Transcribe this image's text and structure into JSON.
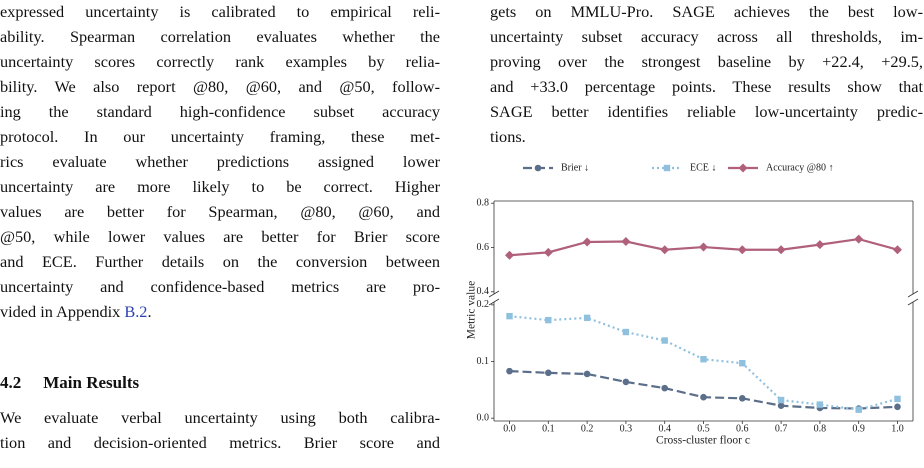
{
  "left": {
    "paragraph1": [
      "expressed uncertainty is calibrated to empirical reli-",
      "ability. Spearman correlation evaluates whether the",
      "uncertainty scores correctly rank examples by relia-",
      "bility. We also report @80, @60, and @50, follow-",
      "ing the standard high-confidence subset accuracy",
      "protocol. In our uncertainty framing, these met-",
      "rics evaluate whether predictions assigned lower",
      "uncertainty are more likely to be correct. Higher",
      "values are better for Spearman, @80, @60, and",
      "@50, while lower values are better for Brier score",
      "and ECE. Further details on the conversion between",
      "uncertainty and confidence-based metrics are pro-"
    ],
    "last_line": {
      "before": "vided in Appendix ",
      "link": "B.2",
      "after": "."
    },
    "section": {
      "number": "4.2",
      "title": "Main Results"
    },
    "paragraph2": [
      "We evaluate verbal uncertainty using both calibra-",
      "tion and decision-oriented metrics. Brier score and"
    ]
  },
  "right": {
    "paragraph": [
      "gets on MMLU-Pro. SAGE achieves the best low-",
      "uncertainty subset accuracy across all thresholds, im-",
      "proving over the strongest baseline by +22.4, +29.5,",
      "and +33.0 percentage points. These results show that",
      "SAGE better identifies reliable low-uncertainty predic-",
      "tions."
    ]
  },
  "chart_data": {
    "type": "line",
    "xlabel": "Cross-cluster floor c",
    "ylabel": "Metric value",
    "x": [
      0,
      0.1,
      0.2,
      0.3,
      0.4,
      0.5,
      0.6,
      0.7,
      0.8,
      0.9,
      1.0
    ],
    "xlim": [
      -0.04,
      1.04
    ],
    "xticks": [
      {
        "value": 0,
        "label": "0.0"
      },
      0.1,
      0.2,
      0.3,
      0.4,
      0.5,
      0.6,
      0.7,
      0.8,
      0.9,
      {
        "value": 1,
        "label": "1.0"
      }
    ],
    "panels": [
      {
        "ylim": [
          0.39,
          0.81
        ],
        "yticks": [
          0.4,
          0.6,
          0.8
        ]
      },
      {
        "ylim": [
          -0.005,
          0.205
        ],
        "yticks": [
          {
            "value": 0,
            "label": "0.0"
          },
          0.1,
          0.2
        ]
      }
    ],
    "series": [
      {
        "name": "Brier ↓",
        "color": "#5b6e8a",
        "style": "dashed",
        "marker": "circle",
        "panel": 1,
        "values": [
          0.083,
          0.08,
          0.078,
          0.064,
          0.053,
          0.037,
          0.035,
          0.022,
          0.018,
          0.017,
          0.02
        ]
      },
      {
        "name": "ECE ↓",
        "color": "#8fc0de",
        "style": "dotted",
        "marker": "square",
        "panel": 1,
        "values": [
          0.18,
          0.173,
          0.177,
          0.152,
          0.137,
          0.104,
          0.097,
          0.032,
          0.024,
          0.015,
          0.034
        ]
      },
      {
        "name": "Accuracy @80 ↑",
        "color": "#b0607a",
        "style": "solid",
        "marker": "diamond",
        "panel": 0,
        "values": [
          0.565,
          0.578,
          0.625,
          0.627,
          0.59,
          0.602,
          0.59,
          0.59,
          0.613,
          0.638,
          0.59
        ]
      }
    ]
  }
}
